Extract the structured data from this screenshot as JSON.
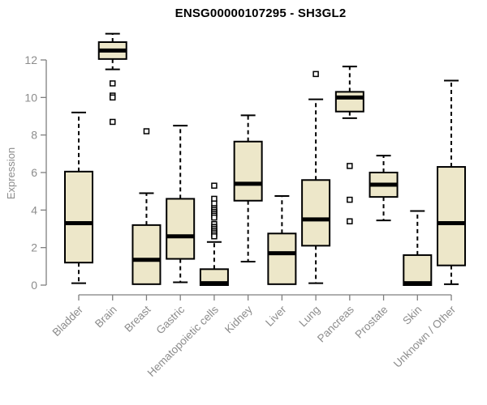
{
  "window": {
    "background": "#ffffff"
  },
  "chart_data": {
    "type": "boxplot",
    "title": "ENSG00000107295 - SH3GL2",
    "xlabel": "",
    "ylabel": "Expression",
    "ylim": [
      0,
      13.5
    ],
    "yticks": [
      0,
      2,
      4,
      6,
      8,
      10,
      12
    ],
    "grid": false,
    "legend": false,
    "categories": [
      "Bladder",
      "Brain",
      "Breast",
      "Gastric",
      "Hematopoietic cells",
      "Kidney",
      "Liver",
      "Lung",
      "Pancreas",
      "Prostate",
      "Skin",
      "Unknown / Other"
    ],
    "series": [
      {
        "name": "Bladder",
        "whisker_low": 0.1,
        "q1": 1.2,
        "median": 3.3,
        "q3": 6.05,
        "whisker_high": 9.2,
        "outliers": []
      },
      {
        "name": "Brain",
        "whisker_low": 11.5,
        "q1": 12.05,
        "median": 12.5,
        "q3": 12.95,
        "whisker_high": 13.4,
        "outliers": [
          10.75,
          10.1,
          10.0,
          8.7
        ]
      },
      {
        "name": "Breast",
        "whisker_low": 0.05,
        "q1": 0.05,
        "median": 1.35,
        "q3": 3.2,
        "whisker_high": 4.9,
        "outliers": [
          8.2
        ]
      },
      {
        "name": "Gastric",
        "whisker_low": 0.15,
        "q1": 1.4,
        "median": 2.6,
        "q3": 4.6,
        "whisker_high": 8.5,
        "outliers": []
      },
      {
        "name": "Hematopoietic cells",
        "whisker_low": 0.0,
        "q1": 0.0,
        "median": 0.1,
        "q3": 0.85,
        "whisker_high": 2.3,
        "outliers": [
          5.3,
          4.6,
          4.35,
          4.1,
          4.0,
          3.9,
          3.8,
          3.7,
          3.6,
          3.25,
          3.1,
          3.0,
          2.9,
          2.8,
          2.7,
          2.6
        ]
      },
      {
        "name": "Kidney",
        "whisker_low": 1.25,
        "q1": 4.5,
        "median": 5.4,
        "q3": 7.65,
        "whisker_high": 9.05,
        "outliers": []
      },
      {
        "name": "Liver",
        "whisker_low": 0.05,
        "q1": 0.05,
        "median": 1.7,
        "q3": 2.75,
        "whisker_high": 4.75,
        "outliers": []
      },
      {
        "name": "Lung",
        "whisker_low": 0.1,
        "q1": 2.1,
        "median": 3.5,
        "q3": 5.6,
        "whisker_high": 9.9,
        "outliers": [
          11.25
        ]
      },
      {
        "name": "Pancreas",
        "whisker_low": 8.9,
        "q1": 9.25,
        "median": 10.0,
        "q3": 10.3,
        "whisker_high": 11.65,
        "outliers": [
          6.35,
          4.55,
          3.4
        ]
      },
      {
        "name": "Prostate",
        "whisker_low": 3.45,
        "q1": 4.7,
        "median": 5.35,
        "q3": 6.0,
        "whisker_high": 6.9,
        "outliers": []
      },
      {
        "name": "Skin",
        "whisker_low": 0.0,
        "q1": 0.0,
        "median": 0.1,
        "q3": 1.6,
        "whisker_high": 3.95,
        "outliers": []
      },
      {
        "name": "Unknown / Other",
        "whisker_low": 0.05,
        "q1": 1.05,
        "median": 3.3,
        "q3": 6.3,
        "whisker_high": 10.9,
        "outliers": []
      }
    ],
    "style": {
      "box_fill": "#ede7c9",
      "box_border": "#000000",
      "median_color": "#000000",
      "whisker_color": "#000000",
      "outlier_stroke": "#000000",
      "outlier_fill": "#ffffff",
      "axis_color": "#7f7f7f",
      "tick_label_color": "#8c8c8c",
      "title_color": "#000000"
    }
  }
}
